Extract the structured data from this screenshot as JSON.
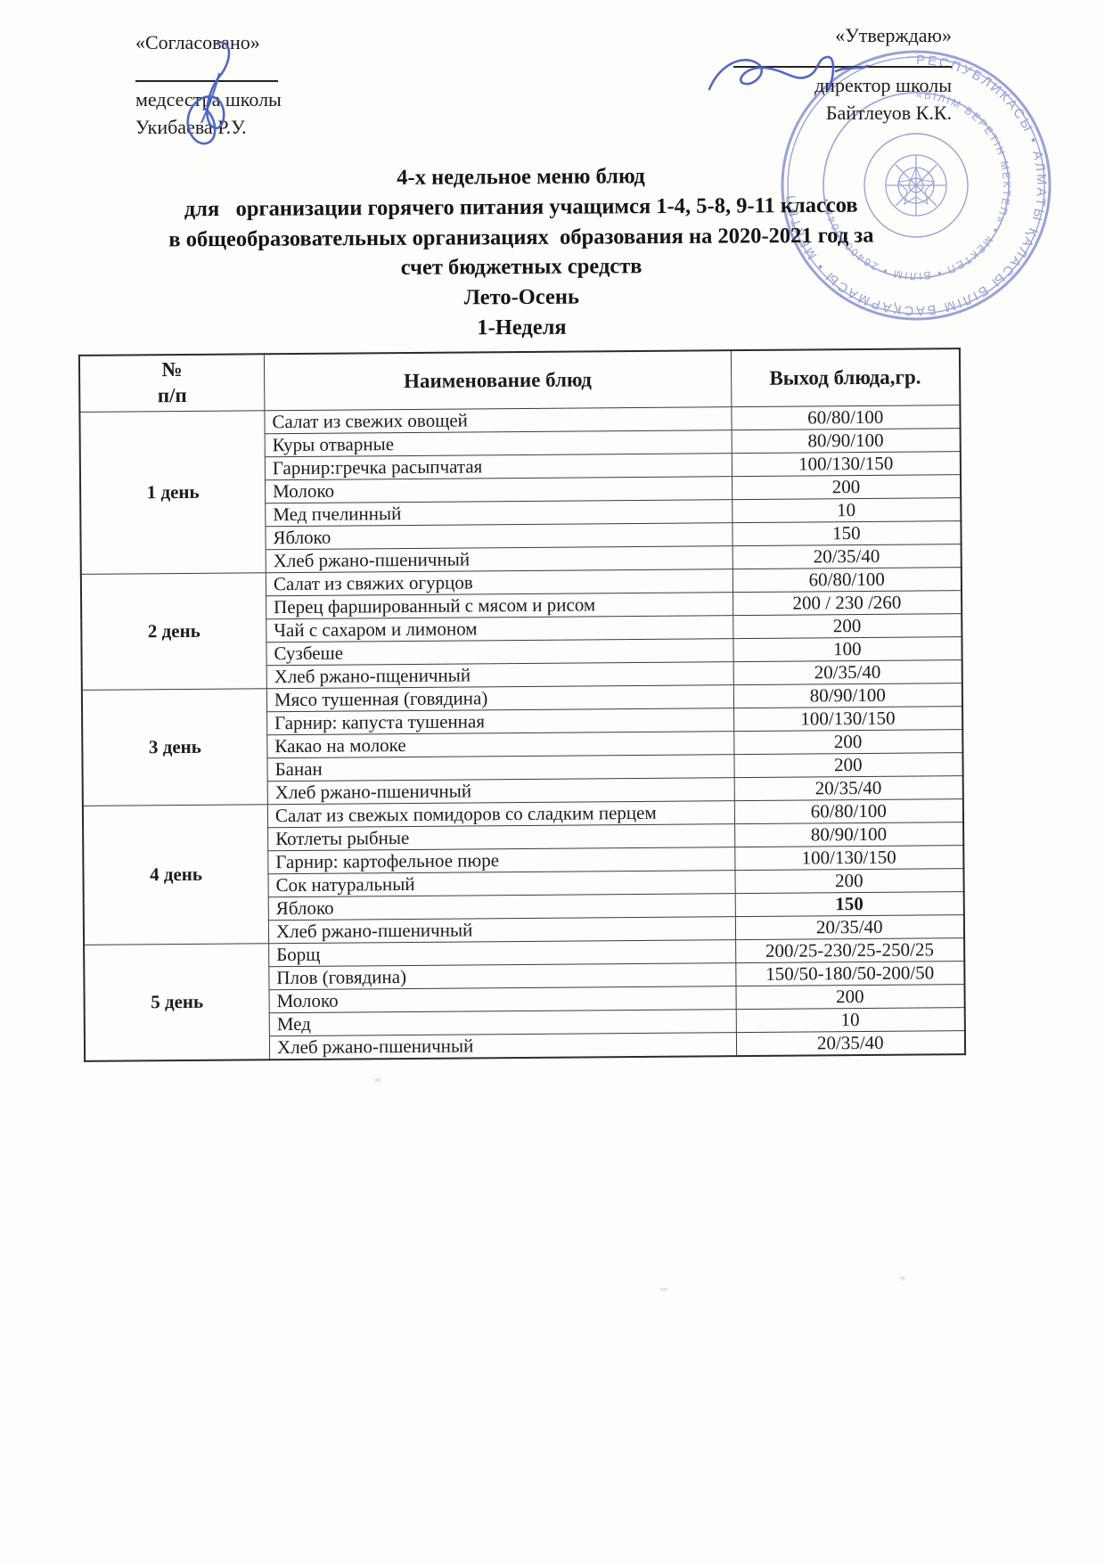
{
  "approvals": {
    "left": {
      "title": "«Согласовано»",
      "role": "медсестра школы",
      "name": "Укибаева Р.У."
    },
    "right": {
      "title": "«Утверждаю»",
      "role": "директор школы",
      "name": "Байтлеуов К.К."
    }
  },
  "title_lines": {
    "l1": "4-х недельное меню блюд",
    "l2": "для   организации горячего питания учащимся 1-4, 5-8, 9-11 классов",
    "l3": "в общеобразовательных организациях  образования на 2020-2021 год за",
    "l4": "счет бюджетных средств",
    "l5": "Лето-Осень",
    "l6": "1-Неделя"
  },
  "stamp": {
    "ring_text": "РЕСПУБЛИКАСЫ • АЛМАТЫ ҚАЛАСЫ БІЛІМ БАСҚАРМАСЫ • ",
    "inner_ring_text": "«БІЛІМ БЕРЕТІН МЕКТЕП» МЕКТЕП • БІЛІМ • ",
    "color": "#5b6cc0"
  },
  "signature_color": "#4a5fc1",
  "table": {
    "headers": {
      "num_line1": "№",
      "num_line2": "п/п",
      "dish": "Наименование блюд",
      "output": "Выход блюда,гр."
    },
    "days": [
      {
        "label": "1 день",
        "rows": [
          {
            "dish": "Салат из свежих овощей",
            "output": "60/80/100"
          },
          {
            "dish": "Куры отварные",
            "output": "80/90/100"
          },
          {
            "dish": "Гарнир:гречка расыпчатая",
            "output": "100/130/150"
          },
          {
            "dish": "Молоко",
            "output": "200"
          },
          {
            "dish": "Мед пчелинный",
            "output": "10"
          },
          {
            "dish": "Яблоко",
            "output": "150"
          },
          {
            "dish": "Хлеб ржано-пшеничный",
            "output": "20/35/40"
          }
        ]
      },
      {
        "label": "2 день",
        "rows": [
          {
            "dish": "Салат из свяжих огурцов",
            "output": "60/80/100"
          },
          {
            "dish": "Перец фаршированный с мясом и рисом",
            "output": "200 / 230 /260"
          },
          {
            "dish": "Чай с сахаром и лимоном",
            "output": "200"
          },
          {
            "dish": "Сузбеше",
            "output": "100"
          },
          {
            "dish": "Хлеб ржано-пщеничный",
            "output": "20/35/40"
          }
        ]
      },
      {
        "label": "3 день",
        "rows": [
          {
            "dish": "Мясо тушенная (говядина)",
            "output": "80/90/100"
          },
          {
            "dish": "Гарнир: капуста тушенная",
            "output": "100/130/150"
          },
          {
            "dish": "Какао на молоке",
            "output": "200"
          },
          {
            "dish": "Банан",
            "output": "200"
          },
          {
            "dish": "Хлеб ржано-пшеничный",
            "output": "20/35/40"
          }
        ]
      },
      {
        "label": "4 день",
        "rows": [
          {
            "dish": "Салат из свежых помидоров со сладким перцем",
            "output": "60/80/100"
          },
          {
            "dish": "Котлеты рыбные",
            "output": "80/90/100"
          },
          {
            "dish": "Гарнир: картофельное пюре",
            "output": "100/130/150"
          },
          {
            "dish": "Сок натуральный",
            "output": "200"
          },
          {
            "dish": "Яблоко",
            "output": "150",
            "bold": true
          },
          {
            "dish": "Хлеб ржано-пшеничный",
            "output": "20/35/40"
          }
        ]
      },
      {
        "label": "5 день",
        "rows": [
          {
            "dish": "Борщ",
            "output": "200/25-230/25-250/25"
          },
          {
            "dish": "Плов (говядина)",
            "output": "150/50-180/50-200/50"
          },
          {
            "dish": "Молоко",
            "output": "200"
          },
          {
            "dish": "Мед",
            "output": "10"
          },
          {
            "dish": "Хлеб ржано-пшеничный",
            "output": "20/35/40"
          }
        ]
      }
    ]
  }
}
